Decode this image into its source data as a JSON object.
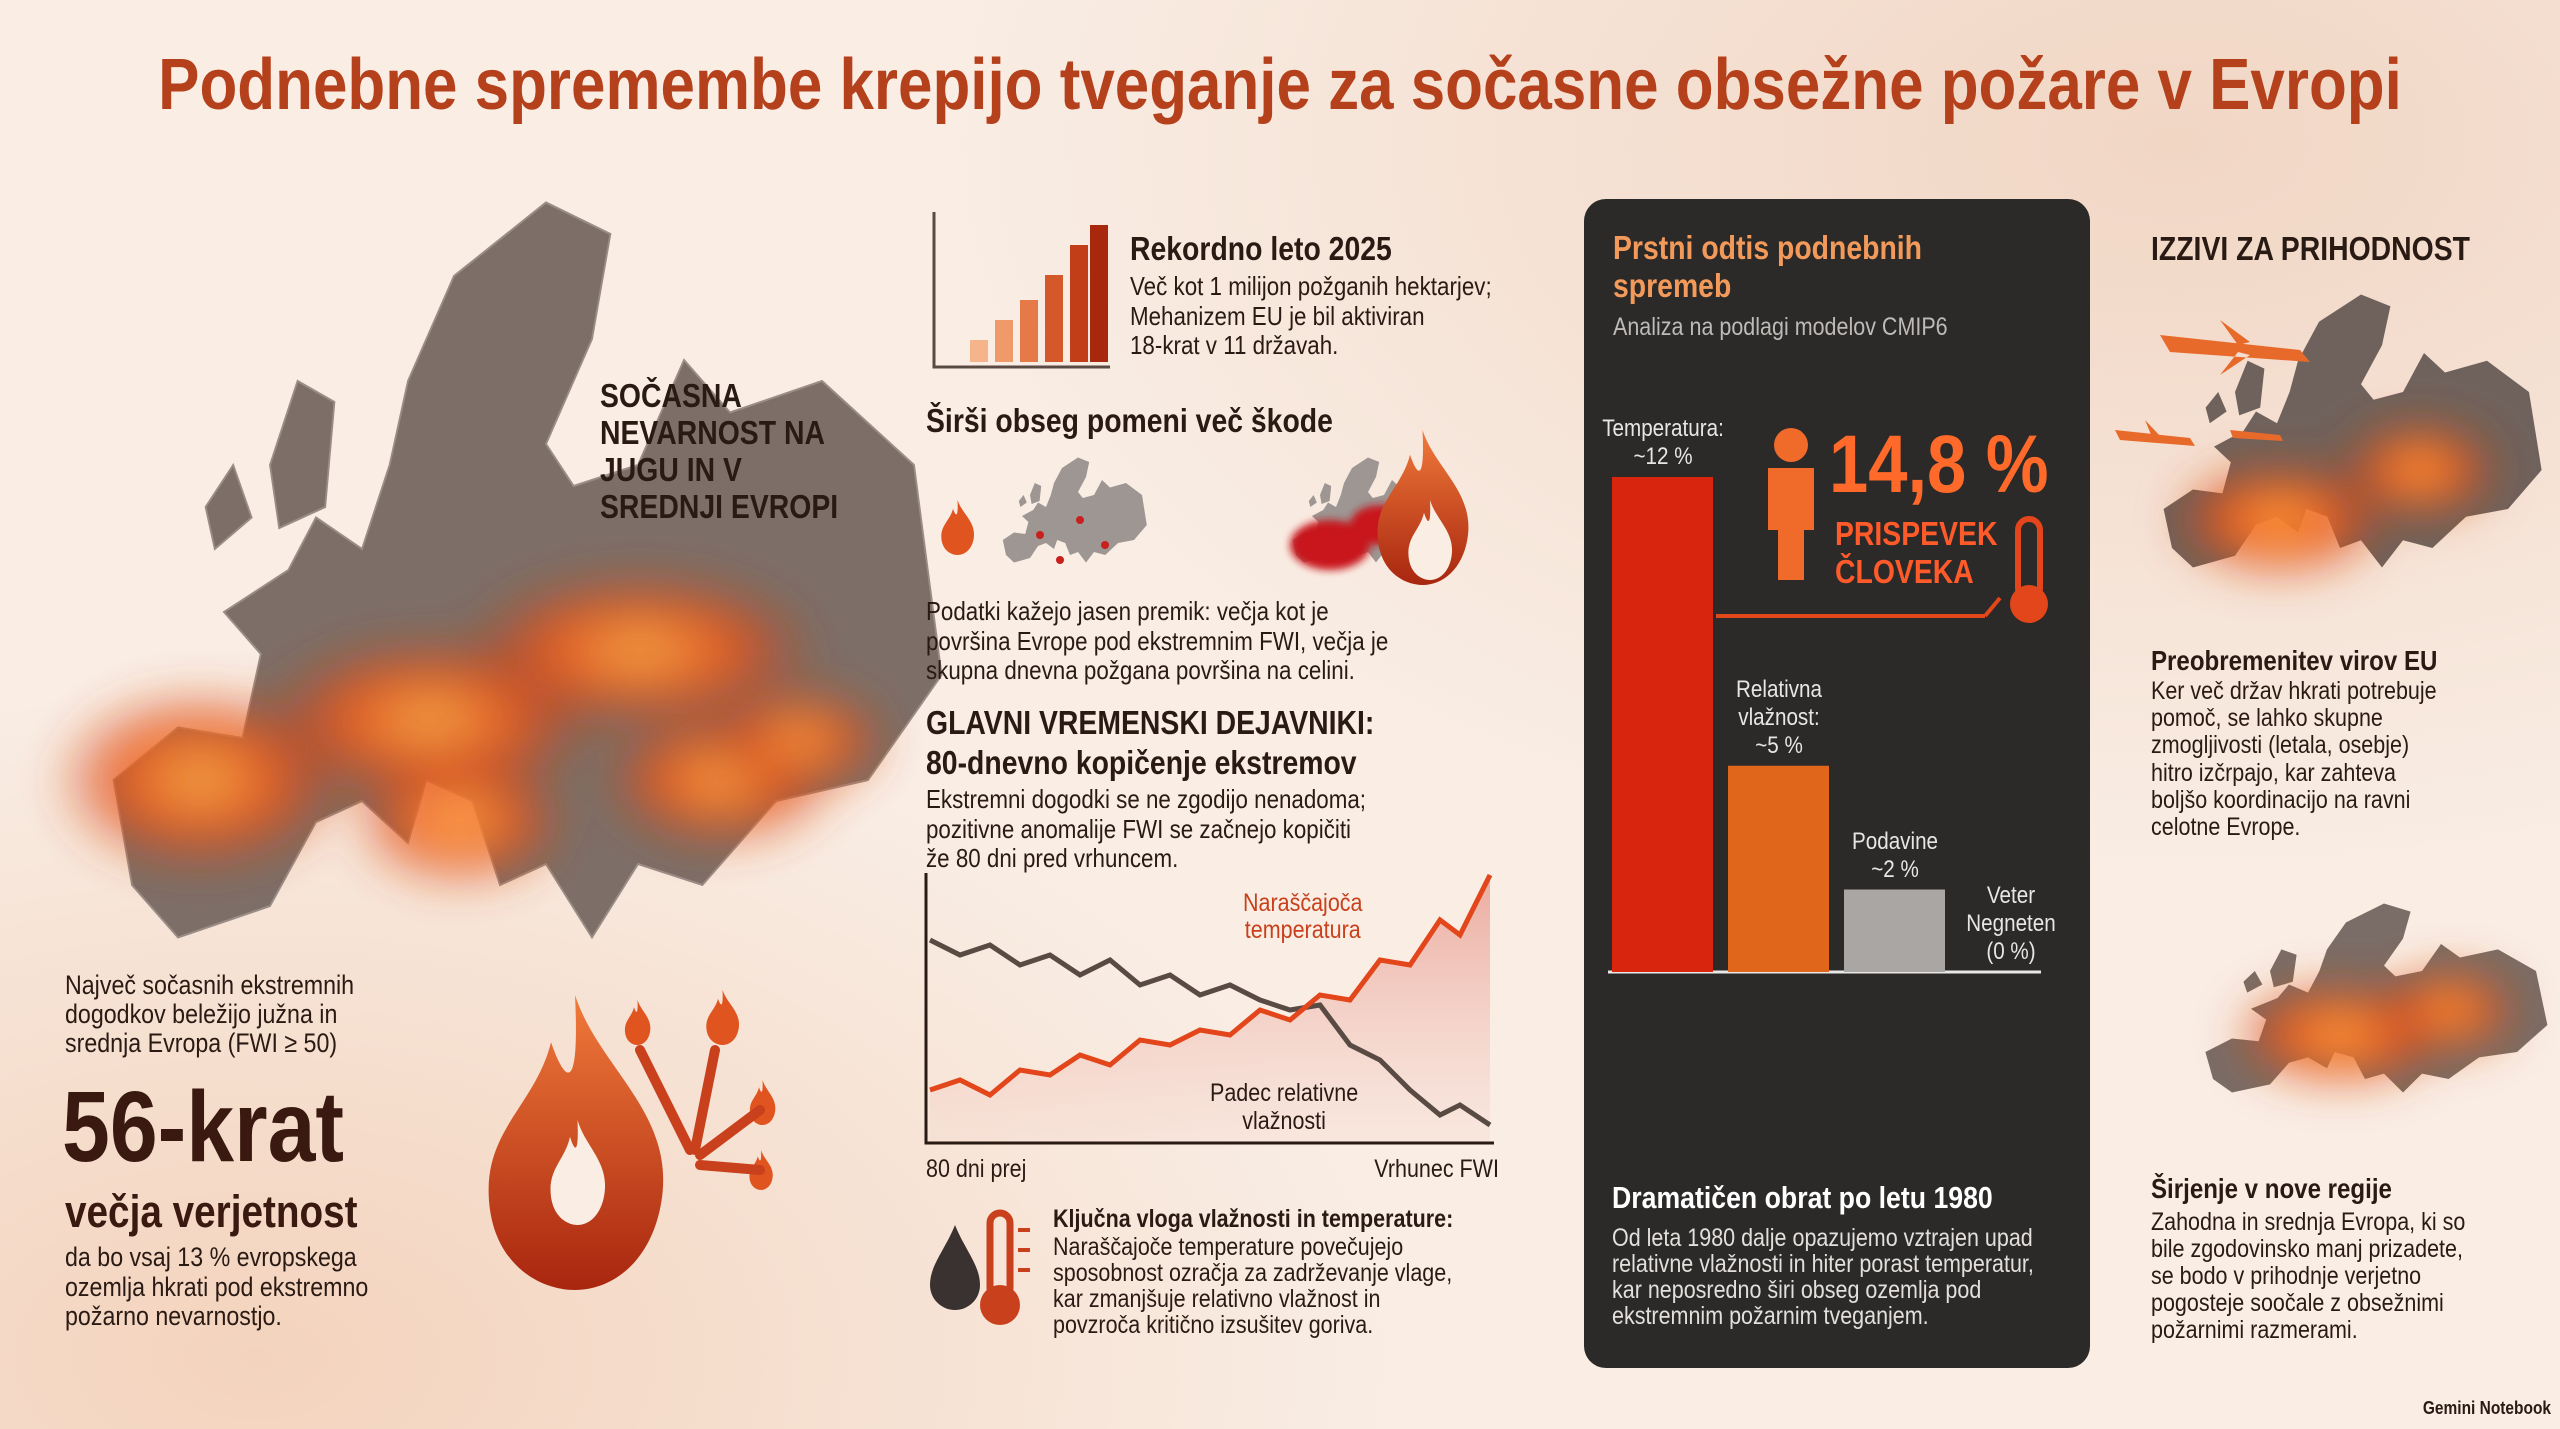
{
  "title": "Podnebne spremembe krepijo tveganje za sočasne obsežne požare v Evropi",
  "left": {
    "map_label": "SOČASNA\nNEVARNOST NA\nJUGU IN V\nSREDNJI EVROPI",
    "intro": "Največ sočasnih ekstremnih\ndogodkov beležijo južna in\nsrednja Evropa (FWI ≥ 50)",
    "big_number": "56-krat",
    "big_label": "večja verjetnost",
    "note": "da bo vsaj 13 % evropskega\nozemlja hkrati pod ekstremno\npožarno nevarnostjo."
  },
  "middle": {
    "record": {
      "title": "Rekordno leto 2025",
      "text": "Več kot 1 milijon požganih hektarjev;\nMehanizem EU je bil aktiviran\n18-krat v 11 državah."
    },
    "scope": {
      "title": "Širši obseg pomeni več škode",
      "text": "Podatki kažejo jasen premik: večja kot je\npovršina Evrope pod ekstremnim FWI, večja je\nskupna dnevna požgana površina na celini."
    },
    "drivers": {
      "title": "GLAVNI VREMENSKI DEJAVNIKI:\n80-dnevno kopičenje ekstremov",
      "text": "Ekstremni dogodki se ne zgodijo nenadoma;\npozitivne anomalije FWI se začnejo kopičiti\nže 80 dni pred vrhuncem.",
      "temp_label": "Naraščajoča\ntemperatura",
      "humidity_label": "Padec relativne\nvlažnosti",
      "x_start": "80 dni prej",
      "x_end": "Vrhunec FWI"
    },
    "key_role": {
      "title": "Ključna vloga vlažnosti in temperature:",
      "text": "Naraščajoče temperature povečujejo\nsposobnost ozračja za zadrževanje vlage,\nkar zmanjšuje relativno vlažnost in\npovzroča kritično izsušitev goriva."
    }
  },
  "panel": {
    "title": "Prstni odtis podnebnih\nspremeb",
    "subtitle": "Analiza na podlagi modelov CMIP6",
    "human_share": "14,8 %",
    "human_label": "PRISPEVEK\nČLOVEKA",
    "shift_title": "Dramatičen obrat po letu 1980",
    "shift_text": "Od leta 1980 dalje opazujemo vztrajen upad\nrelativne vlažnosti in hiter porast temperatur,\nkar neposredno širi obseg ozemlja pod\nekstremnim požarnim tveganjem."
  },
  "chart_data": {
    "type": "bar",
    "categories": [
      "Temperatura:",
      "Relativna\nvlažnost:",
      "Podavine",
      "Veter\nNegneten"
    ],
    "values": [
      12,
      5,
      2,
      0
    ],
    "value_labels": [
      "~12 %",
      "~5 %",
      "~2 %",
      "(0 %)"
    ],
    "colors": [
      "#d8250e",
      "#e0661c",
      "#a9a6a3",
      "#a9a6a3"
    ]
  },
  "right": {
    "title": "IZZIVI ZA PRIHODNOST",
    "overload": {
      "title": "Preobremenitev virov EU",
      "text": "Ker več držav hkrati potrebuje\npomoč, se lahko skupne\nzmogljivosti (letala, osebje)\nhitro izčrpajo, kar zahteva\nboljšo koordinacijo na ravni\ncelotne Evrope."
    },
    "regions": {
      "title": "Širjenje v nove regije",
      "text": "Zahodna in srednja Evropa, ki so\nbile zgodovinsko manj prizadete,\nse bodo v prihodnje verjetno\npogosteje soočale z obsežnimi\npožarnimi razmerami."
    }
  },
  "footer": "Gemini Notebook"
}
